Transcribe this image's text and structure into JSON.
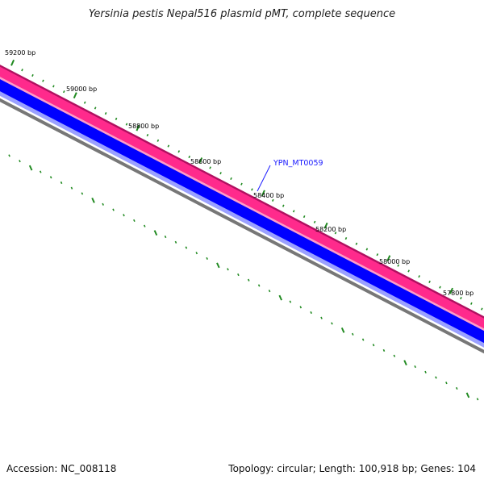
{
  "title": "Yersinia pestis Nepal516 plasmid pMT, complete sequence",
  "footer": {
    "accession": "Accession: NC_008118",
    "summary": "Topology: circular; Length: 100,918 bp; Genes: 104"
  },
  "ruler": {
    "labels": [
      "59200 bp",
      "59000 bp",
      "58800 bp",
      "58600 bp",
      "58400 bp",
      "58200 bp",
      "58000 bp",
      "57800 bp"
    ]
  },
  "gene_label": "YPN_MT0059",
  "colors": {
    "outer_pink": "#ff2a8c",
    "outer_pink_edge": "#b01060",
    "light_pink": "#ff9cc8",
    "blue": "#0000ff",
    "light_blue": "#9aa0ff",
    "gray": "#777777",
    "tick_green": "#228b22",
    "gene_label_blue": "#1a1aff"
  }
}
